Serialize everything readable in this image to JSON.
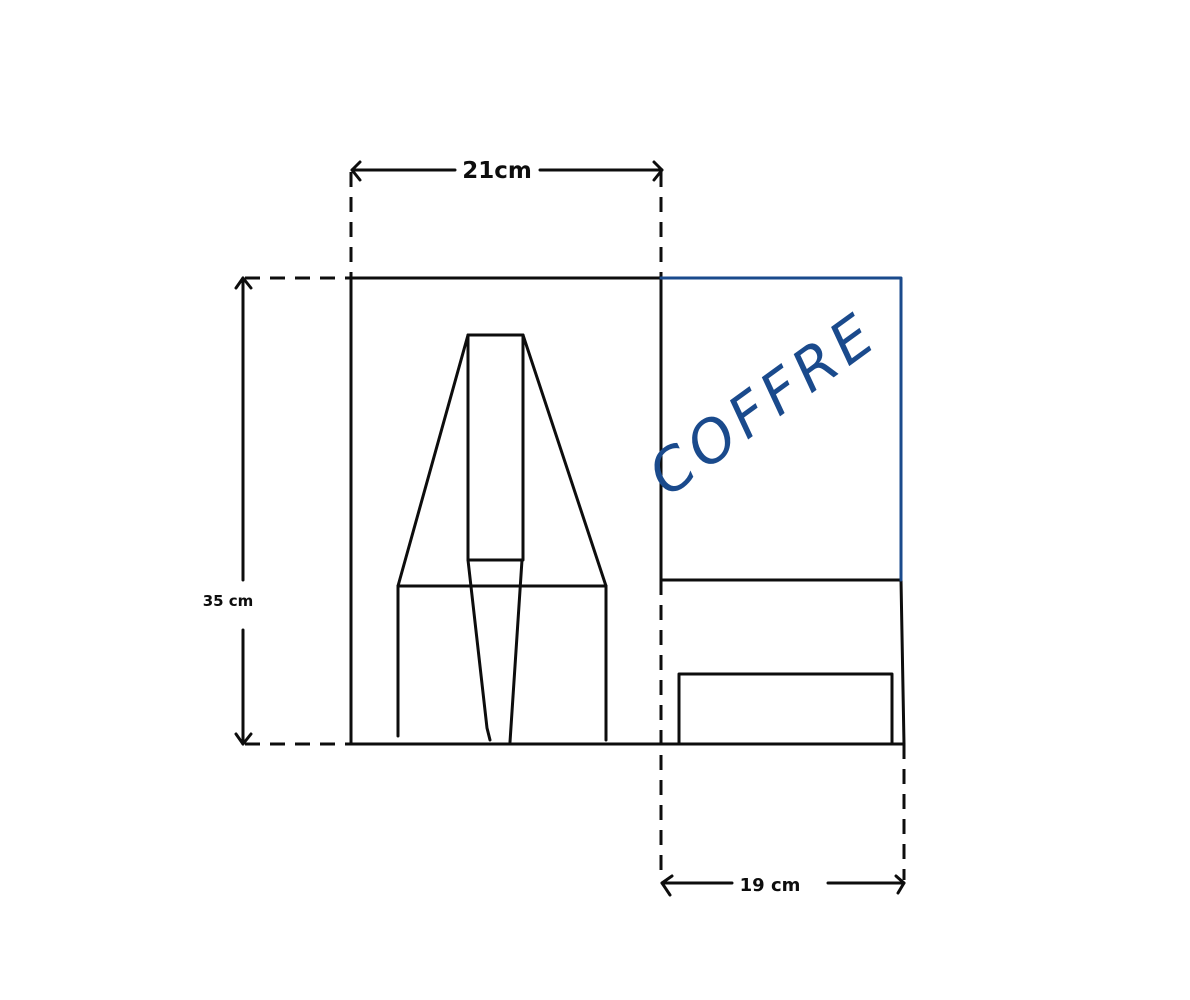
{
  "dimensions": {
    "top_width": "21cm",
    "height": "35 cm",
    "bottom_width": "19 cm"
  },
  "labels": {
    "compartment": "COFFRE"
  },
  "colors": {
    "ink": "#0d0d0d",
    "accent": "#1a4a8c",
    "background": "#ffffff"
  }
}
